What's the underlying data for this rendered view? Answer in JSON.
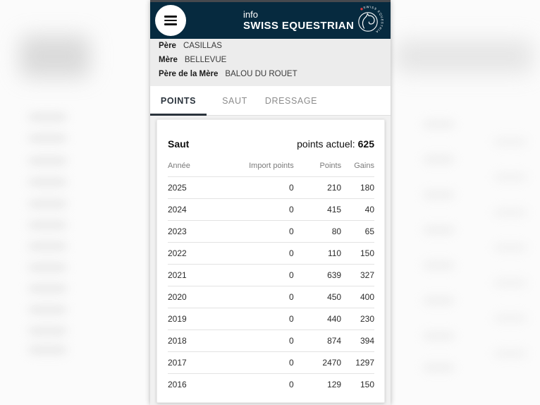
{
  "colors": {
    "brand_navy": "#062a3f",
    "logo_red": "#e03a3e",
    "active_tab": "#2a333c",
    "page_bg": "#f1f1f1"
  },
  "appbar": {
    "title": "info",
    "brand": "SWISS EQUESTRIAN",
    "logo_text": "SWISS EQUESTRIAN"
  },
  "pedigree": [
    {
      "label": "Père",
      "value": "CASILLAS"
    },
    {
      "label": "Mère",
      "value": "BELLEVUE"
    },
    {
      "label": "Père de la Mère",
      "value": "BALOU DU ROUET"
    }
  ],
  "tabs": [
    {
      "label": "POINTS",
      "active": true
    },
    {
      "label": "SAUT",
      "active": false
    },
    {
      "label": "DRESSAGE",
      "active": false
    }
  ],
  "card": {
    "title": "Saut",
    "points_label": "points actuel:",
    "points_value": "625"
  },
  "table": {
    "columns": [
      "Année",
      "Import points",
      "Points",
      "Gains"
    ],
    "rows": [
      [
        "2025",
        "0",
        "210",
        "180"
      ],
      [
        "2024",
        "0",
        "415",
        "40"
      ],
      [
        "2023",
        "0",
        "80",
        "65"
      ],
      [
        "2022",
        "0",
        "110",
        "150"
      ],
      [
        "2021",
        "0",
        "639",
        "327"
      ],
      [
        "2020",
        "0",
        "450",
        "400"
      ],
      [
        "2019",
        "0",
        "440",
        "230"
      ],
      [
        "2018",
        "0",
        "874",
        "394"
      ],
      [
        "2017",
        "0",
        "2470",
        "1297"
      ],
      [
        "2016",
        "0",
        "129",
        "150"
      ]
    ]
  }
}
